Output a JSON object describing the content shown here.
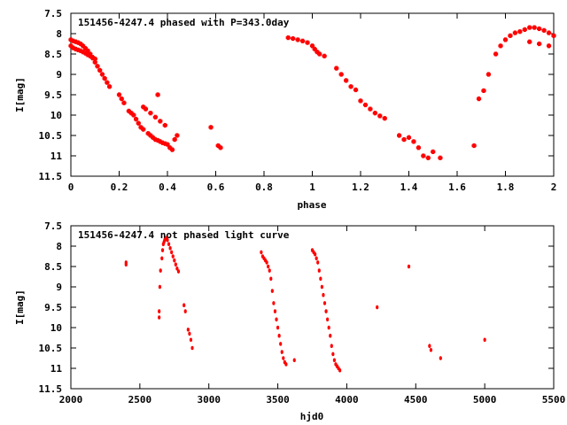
{
  "chart_data": [
    {
      "type": "scatter",
      "title": "151456-4247.4 phased with P=343.0day",
      "xlabel": "phase",
      "ylabel": "I[mag]",
      "xlim": [
        0,
        2
      ],
      "ylim": [
        7.5,
        11.5
      ],
      "y_inverted": true,
      "xticks": [
        "0",
        "0.2",
        "0.4",
        "0.6",
        "0.8",
        "1",
        "1.2",
        "1.4",
        "1.6",
        "1.8",
        "2"
      ],
      "yticks": [
        "7.5",
        "8",
        "8.5",
        "9",
        "9.5",
        "10",
        "10.5",
        "11",
        "11.5"
      ],
      "grid": false,
      "marker_color": "#ff0000",
      "series": [
        {
          "x": [
            0.0,
            0.01,
            0.02,
            0.03,
            0.04,
            0.05,
            0.06,
            0.07,
            0.08,
            0.09,
            0.1,
            0.11,
            0.12,
            0.13,
            0.14,
            0.15,
            0.16,
            0.0,
            0.01,
            0.02,
            0.03,
            0.04,
            0.05,
            0.06,
            0.07,
            0.08,
            0.09,
            0.1,
            0.2,
            0.21,
            0.22,
            0.24,
            0.25,
            0.26,
            0.27,
            0.28,
            0.29,
            0.3,
            0.32,
            0.33,
            0.34,
            0.35,
            0.36,
            0.37,
            0.38,
            0.39,
            0.4,
            0.41,
            0.42,
            0.43,
            0.44,
            0.3,
            0.31,
            0.33,
            0.35,
            0.37,
            0.39,
            0.36,
            0.58,
            0.61,
            0.62,
            0.9,
            0.92,
            0.94,
            0.96,
            0.98,
            1.0,
            1.01,
            1.02,
            1.03,
            1.05,
            1.1,
            1.12,
            1.14,
            1.16,
            1.18,
            1.2,
            1.22,
            1.24,
            1.26,
            1.28,
            1.3,
            1.36,
            1.38,
            1.4,
            1.42,
            1.44,
            1.46,
            1.48,
            1.5,
            1.53,
            1.67,
            1.69,
            1.71,
            1.73,
            1.76,
            1.78,
            1.8,
            1.82,
            1.84,
            1.86,
            1.88,
            1.9,
            1.92,
            1.94,
            1.96,
            1.98,
            2.0,
            1.9,
            1.94,
            1.98
          ],
          "y": [
            8.15,
            8.18,
            8.2,
            8.22,
            8.25,
            8.3,
            8.36,
            8.42,
            8.5,
            8.6,
            8.7,
            8.8,
            8.9,
            9.0,
            9.1,
            9.2,
            9.3,
            8.3,
            8.35,
            8.38,
            8.4,
            8.42,
            8.45,
            8.48,
            8.52,
            8.55,
            8.58,
            8.62,
            9.5,
            9.6,
            9.7,
            9.9,
            9.95,
            10.0,
            10.1,
            10.2,
            10.3,
            10.35,
            10.45,
            10.5,
            10.55,
            10.6,
            10.62,
            10.65,
            10.68,
            10.7,
            10.72,
            10.8,
            10.85,
            10.6,
            10.5,
            9.8,
            9.85,
            9.95,
            10.05,
            10.15,
            10.25,
            9.5,
            10.3,
            10.75,
            10.8,
            8.1,
            8.12,
            8.15,
            8.18,
            8.22,
            8.3,
            8.38,
            8.45,
            8.5,
            8.55,
            8.85,
            9.0,
            9.15,
            9.3,
            9.38,
            9.65,
            9.75,
            9.85,
            9.95,
            10.02,
            10.08,
            10.5,
            10.6,
            10.55,
            10.65,
            10.8,
            11.0,
            11.05,
            10.9,
            11.05,
            10.75,
            9.6,
            9.4,
            9.0,
            8.5,
            8.3,
            8.15,
            8.05,
            7.98,
            7.95,
            7.9,
            7.85,
            7.85,
            7.88,
            7.92,
            7.98,
            8.05,
            8.2,
            8.25,
            8.3
          ]
        }
      ]
    },
    {
      "type": "scatter",
      "title": "151456-4247.4 not phased light curve",
      "xlabel": "hjd0",
      "ylabel": "I[mag]",
      "xlim": [
        2000,
        5500
      ],
      "ylim": [
        7.5,
        11.5
      ],
      "y_inverted": true,
      "xticks": [
        "2000",
        "2500",
        "3000",
        "3500",
        "4000",
        "4500",
        "5000",
        "5500"
      ],
      "yticks": [
        "7.5",
        "8",
        "8.5",
        "9",
        "9.5",
        "10",
        "10.5",
        "11",
        "11.5"
      ],
      "grid": false,
      "marker_color": "#ff0000",
      "series": [
        {
          "x": [
            2400,
            2400,
            2640,
            2640,
            2645,
            2650,
            2660,
            2665,
            2670,
            2675,
            2680,
            2690,
            2700,
            2710,
            2720,
            2730,
            2740,
            2750,
            2760,
            2770,
            2780,
            2820,
            2830,
            2850,
            2860,
            2870,
            2880,
            3380,
            3390,
            3400,
            3410,
            3420,
            3430,
            3440,
            3450,
            3460,
            3470,
            3480,
            3490,
            3500,
            3510,
            3520,
            3530,
            3540,
            3550,
            3560,
            3620,
            3750,
            3760,
            3770,
            3780,
            3790,
            3800,
            3810,
            3820,
            3830,
            3840,
            3850,
            3860,
            3870,
            3880,
            3890,
            3900,
            3910,
            3920,
            3930,
            3940,
            3950,
            4220,
            4450,
            4600,
            4610,
            4680,
            5000
          ],
          "y": [
            8.4,
            8.45,
            9.6,
            9.75,
            9.0,
            8.6,
            8.3,
            8.1,
            7.95,
            7.9,
            7.85,
            7.8,
            7.85,
            7.95,
            8.05,
            8.15,
            8.25,
            8.35,
            8.45,
            8.55,
            8.62,
            9.45,
            9.6,
            10.05,
            10.15,
            10.3,
            10.5,
            8.15,
            8.25,
            8.3,
            8.35,
            8.4,
            8.5,
            8.6,
            8.8,
            9.1,
            9.4,
            9.6,
            9.8,
            10.0,
            10.2,
            10.4,
            10.6,
            10.75,
            10.85,
            10.9,
            10.8,
            8.1,
            8.15,
            8.2,
            8.3,
            8.4,
            8.6,
            8.8,
            9.0,
            9.2,
            9.4,
            9.6,
            9.8,
            10.0,
            10.2,
            10.45,
            10.65,
            10.8,
            10.9,
            10.95,
            11.0,
            11.05,
            9.5,
            8.5,
            10.45,
            10.55,
            10.75,
            10.3
          ]
        }
      ]
    }
  ]
}
